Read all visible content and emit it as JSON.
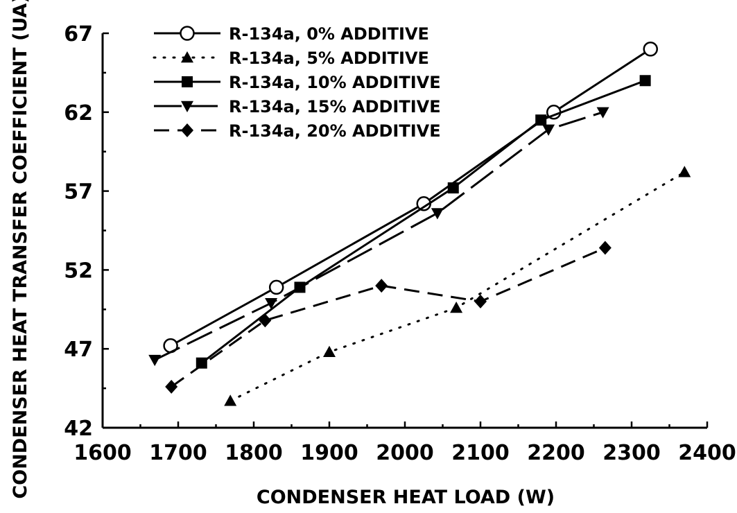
{
  "chart_data": {
    "type": "line",
    "xlabel": "CONDENSER HEAT LOAD (W)",
    "ylabel": "CONDENSER HEAT TRANSFER COEFFICIENT (UA)",
    "xlim": [
      1600,
      2400
    ],
    "ylim": [
      42,
      67
    ],
    "xticks": [
      1600,
      1700,
      1800,
      1900,
      2000,
      2100,
      2200,
      2300,
      2400
    ],
    "yticks": [
      42,
      47,
      52,
      57,
      62,
      67
    ],
    "grid": false,
    "legend_position": "top-left",
    "series": [
      {
        "name": "R-134a, 0% ADDITIVE",
        "marker": "circle-open",
        "dash": "solid",
        "points": [
          [
            1690,
            47.2
          ],
          [
            1830,
            50.9
          ],
          [
            2025,
            56.2
          ],
          [
            2197,
            62.0
          ],
          [
            2325,
            66.0
          ]
        ]
      },
      {
        "name": "R-134a, 5% ADDITIVE",
        "marker": "triangle-up",
        "dash": "dotted",
        "points": [
          [
            1769,
            43.7
          ],
          [
            1900,
            46.8
          ],
          [
            2068,
            49.6
          ],
          [
            2370,
            58.2
          ]
        ]
      },
      {
        "name": "R-134a, 10% ADDITIVE",
        "marker": "square",
        "dash": "solid",
        "points": [
          [
            1731,
            46.1
          ],
          [
            1861,
            50.9
          ],
          [
            2064,
            57.2
          ],
          [
            2180,
            61.5
          ],
          [
            2318,
            64.0
          ]
        ]
      },
      {
        "name": "R-134a, 15% ADDITIVE",
        "marker": "triangle-down",
        "dash": "longdash",
        "points": [
          [
            1669,
            46.3
          ],
          [
            1823,
            49.9
          ],
          [
            2043,
            55.6
          ],
          [
            2190,
            60.9
          ],
          [
            2262,
            62.0
          ]
        ]
      },
      {
        "name": "R-134a, 20% ADDITIVE",
        "marker": "diamond",
        "dash": "dashed",
        "points": [
          [
            1691,
            44.6
          ],
          [
            1815,
            48.8
          ],
          [
            1969,
            51.0
          ],
          [
            2100,
            50.0
          ],
          [
            2265,
            53.4
          ]
        ]
      }
    ]
  }
}
